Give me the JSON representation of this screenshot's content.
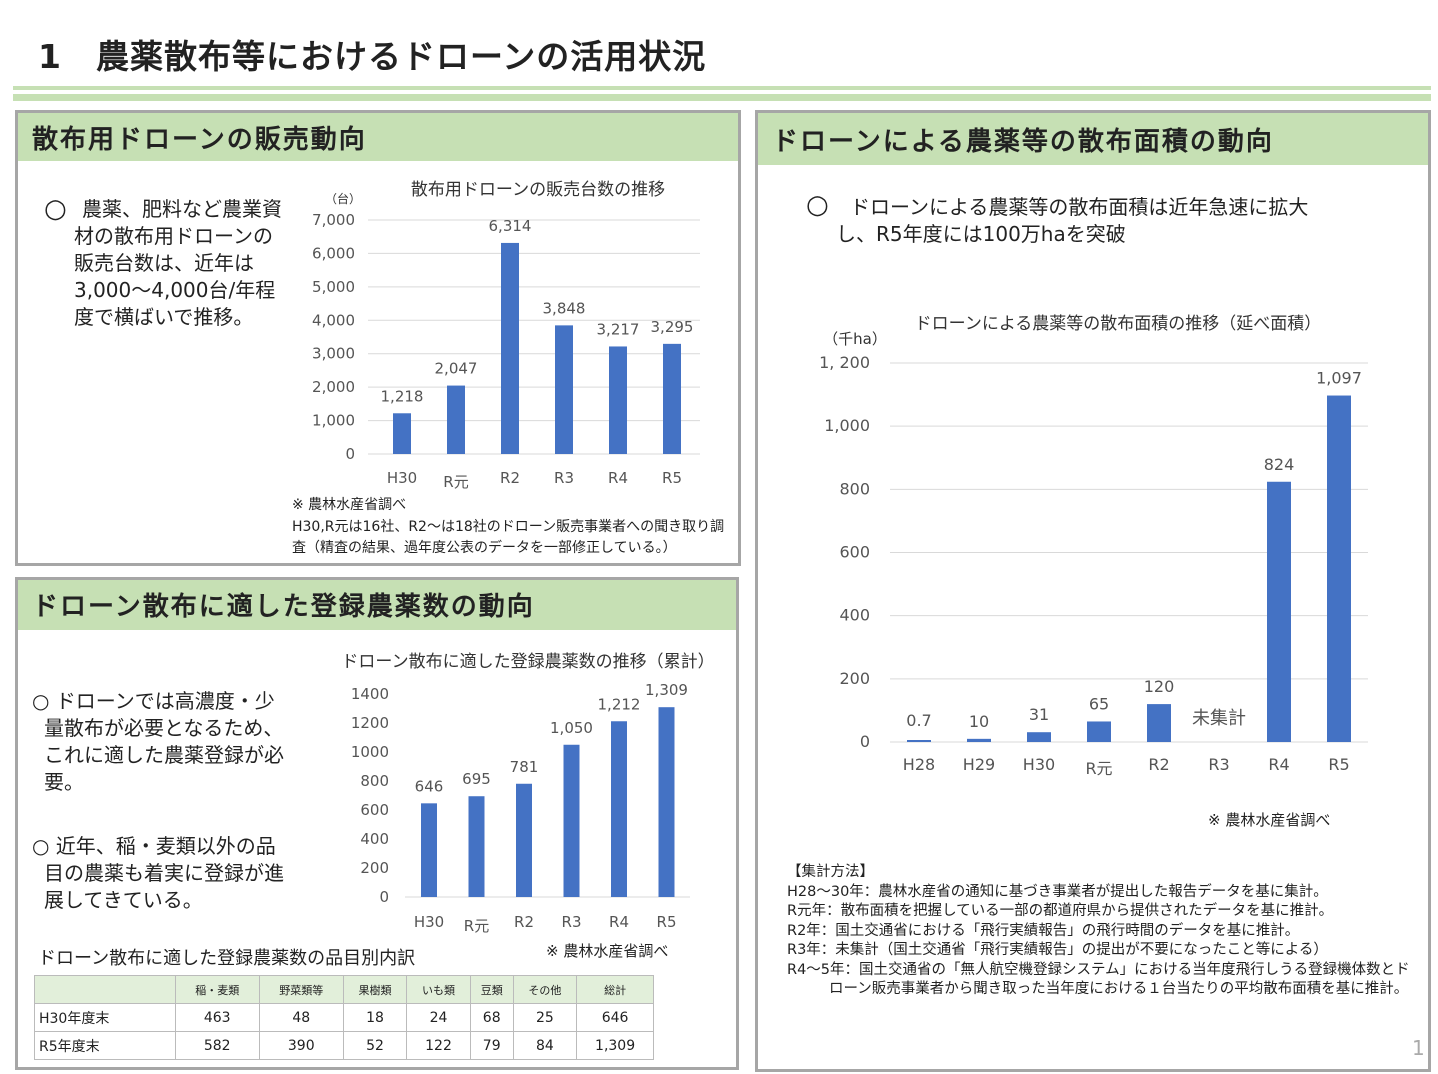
{
  "title": "1　農薬散布等におけるドローンの活用状況",
  "sales": {
    "heading": "散布用ドローンの販売動向",
    "bullet": "○",
    "text": "農薬、肥料など農業資材の散布用ドローンの販売台数は、近年は3,000～4,000台/年程度で横ばいで推移。",
    "note1": "※ 農林水産省調べ",
    "note2": "H30,R元は16社、R2～は18社のドローン販売事業者への聞き取り調査（精査の結果、過年度公表のデータを一部修正している。）"
  },
  "pesticides": {
    "heading": "ドローン散布に適した登録農薬数の動向",
    "bullet1": "○ ドローンでは高濃度・少量散布が必要となるため、これに適した農薬登録が必要。",
    "bullet2": "○ 近年、稲・麦類以外の品目の農薬も着実に登録が進展してきている。",
    "note": "※ 農林水産省調べ",
    "table_title": "ドローン散布に適した登録農薬数の品目別内訳",
    "table": {
      "headers": [
        "",
        "稲・麦類",
        "野菜類等",
        "果樹類",
        "いも類",
        "豆類",
        "その他",
        "総計"
      ],
      "rows": [
        [
          "H30年度末",
          "463",
          "48",
          "18",
          "24",
          "68",
          "25",
          "646"
        ],
        [
          "R5年度末",
          "582",
          "390",
          "52",
          "122",
          "79",
          "84",
          "1,309"
        ]
      ]
    }
  },
  "area": {
    "heading": "ドローンによる農薬等の散布面積の動向",
    "bullet": "○",
    "text": "ドローンによる農薬等の散布面積は近年急速に拡大し、R5年度には100万haを突破",
    "note": "※ 農林水産省調べ",
    "method_title": "【集計方法】",
    "methods": [
      "H28～30年：農林水産省の通知に基づき事業者が提出した報告データを基に集計。",
      "R元年：散布面積を把握している一部の都道府県から提供されたデータを基に推計。",
      "R2年：国土交通省における「飛行実績報告」の飛行時間のデータを基に推計。",
      "R3年：未集計（国土交通省「飛行実績報告」の提出が不要になったこと等による）",
      "R4～5年：国土交通省の「無人航空機登録システム」における当年度飛行しうる登録機体数とド",
      "ローン販売事業者から聞き取った当年度における１台当たりの平均散布面積を基に推計。"
    ]
  },
  "page_number": "1",
  "chart_data": [
    {
      "type": "bar",
      "title": "散布用ドローンの販売台数の推移",
      "ylabel": "（台）",
      "categories": [
        "H30",
        "R元",
        "R2",
        "R3",
        "R4",
        "R5"
      ],
      "values": [
        1218,
        2047,
        6314,
        3848,
        3217,
        3295
      ],
      "value_labels": [
        "1,218",
        "2,047",
        "6,314",
        "3,848",
        "3,217",
        "3,295"
      ],
      "ylim": [
        0,
        7000
      ],
      "yticks": [
        "0",
        "1,000",
        "2,000",
        "3,000",
        "4,000",
        "5,000",
        "6,000",
        "7,000"
      ],
      "color": "#4472c4"
    },
    {
      "type": "bar",
      "title": "ドローン散布に適した登録農薬数の推移（累計）",
      "ylabel": "",
      "categories": [
        "H30",
        "R元",
        "R2",
        "R3",
        "R4",
        "R5"
      ],
      "values": [
        646,
        695,
        781,
        1050,
        1212,
        1309
      ],
      "value_labels": [
        "646",
        "695",
        "781",
        "1,050",
        "1,212",
        "1,309"
      ],
      "ylim": [
        0,
        1400
      ],
      "yticks": [
        "0",
        "200",
        "400",
        "600",
        "800",
        "1000",
        "1200",
        "1400"
      ],
      "color": "#4472c4"
    },
    {
      "type": "bar",
      "title": "ドローンによる農薬等の散布面積の推移（延べ面積）",
      "ylabel": "（千ha）",
      "categories": [
        "H28",
        "H29",
        "H30",
        "R元",
        "R2",
        "R3",
        "R4",
        "R5"
      ],
      "values": [
        0.7,
        10,
        31,
        65,
        120,
        null,
        824,
        1097
      ],
      "value_labels": [
        "0.7",
        "10",
        "31",
        "65",
        "120",
        "未集計",
        "824",
        "1,097"
      ],
      "ylim": [
        0,
        1200
      ],
      "yticks": [
        "0",
        "200",
        "400",
        "600",
        "800",
        "1,000",
        "1, 200"
      ],
      "color": "#4472c4"
    }
  ]
}
